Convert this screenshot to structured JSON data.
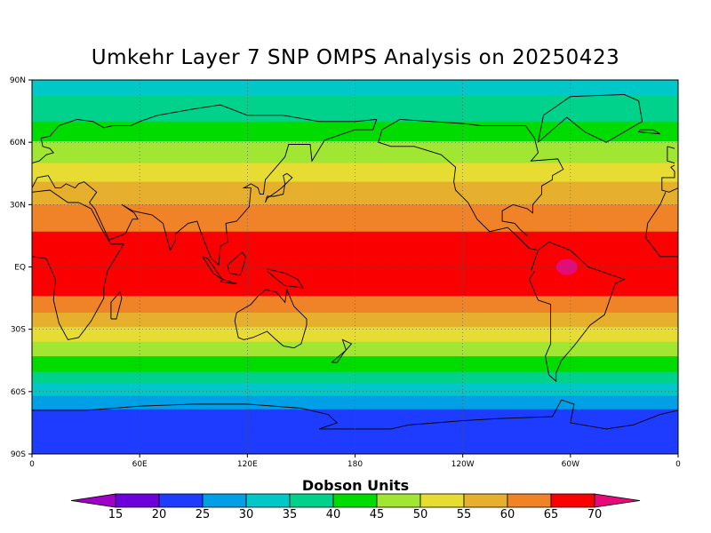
{
  "title": "Umkehr Layer 7 SNP OMPS Analysis on 20250423",
  "map": {
    "projection": "equirectangular",
    "lon_ticks": [
      "0",
      "60E",
      "120E",
      "180",
      "120W",
      "60W",
      "0"
    ],
    "lat_ticks": [
      "90N",
      "60N",
      "30N",
      "EQ",
      "30S",
      "60S",
      "90S"
    ],
    "grid_lines": "dotted",
    "features": [
      "coastlines"
    ],
    "field_by_latitude": [
      {
        "lat": 90,
        "value": 32
      },
      {
        "lat": 80,
        "value": 36
      },
      {
        "lat": 70,
        "value": 40
      },
      {
        "lat": 62,
        "value": 44
      },
      {
        "lat": 55,
        "value": 48
      },
      {
        "lat": 45,
        "value": 52
      },
      {
        "lat": 38,
        "value": 57
      },
      {
        "lat": 30,
        "value": 60
      },
      {
        "lat": 22,
        "value": 63
      },
      {
        "lat": 12,
        "value": 67
      },
      {
        "lat": 0,
        "value": 68
      },
      {
        "lat": -10,
        "value": 67
      },
      {
        "lat": -18,
        "value": 63
      },
      {
        "lat": -25,
        "value": 58
      },
      {
        "lat": -32,
        "value": 53
      },
      {
        "lat": -40,
        "value": 47
      },
      {
        "lat": -48,
        "value": 42
      },
      {
        "lat": -55,
        "value": 36
      },
      {
        "lat": -62,
        "value": 30
      },
      {
        "lat": -70,
        "value": 24
      },
      {
        "lat": -90,
        "value": 22
      }
    ],
    "notable_feature": "local maximum above 70 over northern South America near the equator"
  },
  "colorbar": {
    "title": "Dobson Units",
    "ticks": [
      "15",
      "20",
      "25",
      "30",
      "35",
      "40",
      "45",
      "50",
      "55",
      "60",
      "65",
      "70"
    ],
    "colors": [
      "#a000c8",
      "#6e00dc",
      "#1e3cff",
      "#00a0e6",
      "#00c8c8",
      "#00d28c",
      "#00dc00",
      "#a0e632",
      "#e6dc32",
      "#e6af2d",
      "#f08228",
      "#fa0000",
      "#e60a7a"
    ]
  },
  "chart_data": {
    "type": "heatmap",
    "title": "Umkehr Layer 7 SNP OMPS Analysis on 20250423",
    "xlabel": "",
    "ylabel": "",
    "colorbar_label": "Dobson Units",
    "levels": [
      15,
      20,
      25,
      30,
      35,
      40,
      45,
      50,
      55,
      60,
      65,
      70
    ],
    "xlim": [
      0,
      360
    ],
    "ylim": [
      -90,
      90
    ],
    "zonal_profile": {
      "lat": [
        90,
        80,
        70,
        62,
        55,
        45,
        38,
        30,
        22,
        12,
        0,
        -10,
        -18,
        -25,
        -32,
        -40,
        -48,
        -55,
        -62,
        -70,
        -90
      ],
      "value": [
        32,
        36,
        40,
        44,
        48,
        52,
        57,
        60,
        63,
        67,
        68,
        67,
        63,
        58,
        53,
        47,
        42,
        36,
        30,
        24,
        22
      ]
    }
  }
}
